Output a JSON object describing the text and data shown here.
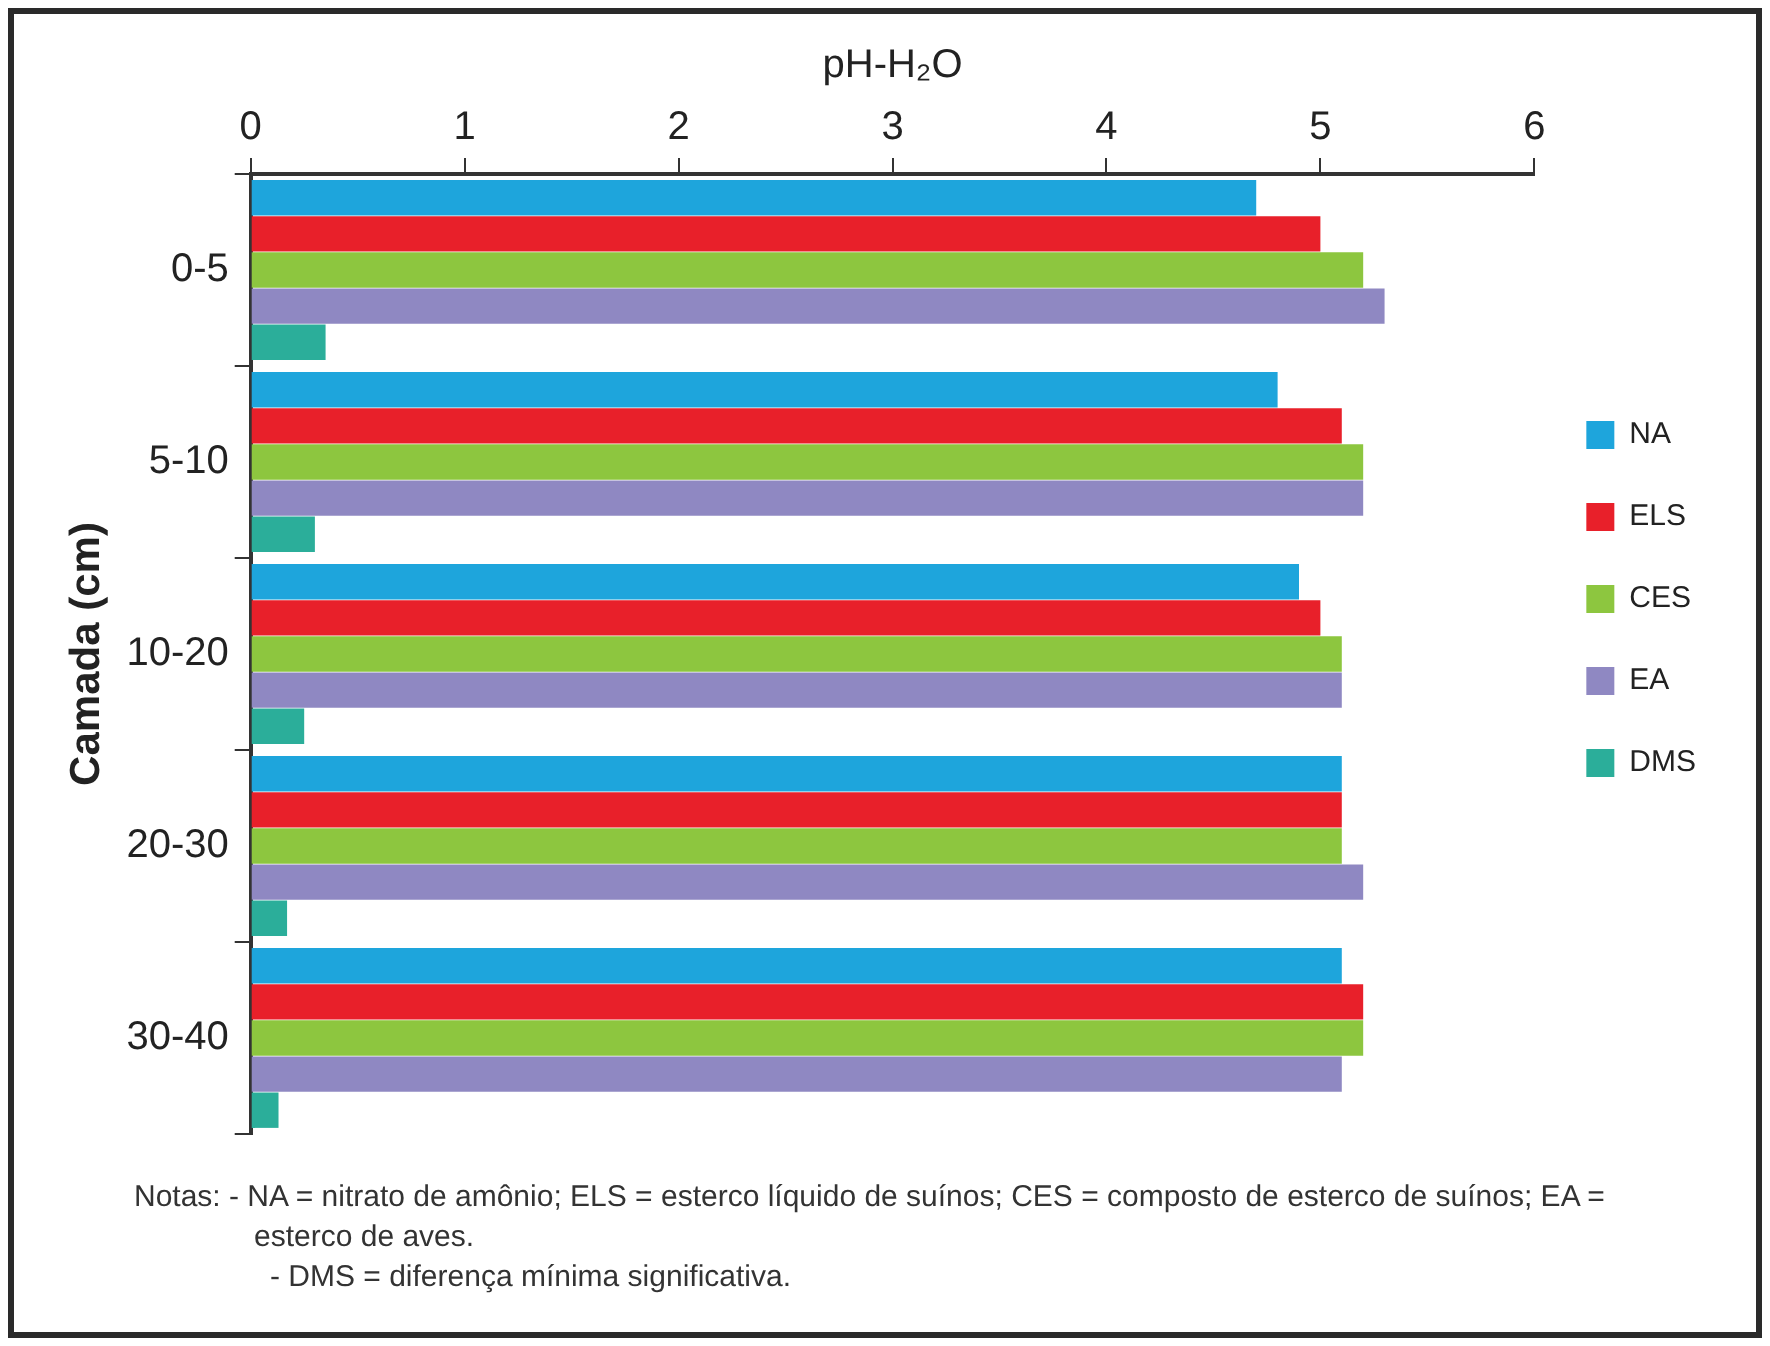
{
  "chart_data": {
    "type": "bar",
    "orientation": "horizontal",
    "xlabel": "pH-H₂O",
    "ylabel": "Camada (cm)",
    "categories": [
      "0-5",
      "5-10",
      "10-20",
      "20-30",
      "30-40"
    ],
    "series": [
      {
        "name": "NA",
        "color": "#1ea5dc",
        "values": [
          4.7,
          4.8,
          4.9,
          5.1,
          5.1
        ]
      },
      {
        "name": "ELS",
        "color": "#e8202a",
        "values": [
          5.0,
          5.1,
          5.0,
          5.1,
          5.2
        ]
      },
      {
        "name": "CES",
        "color": "#8dc63f",
        "values": [
          5.2,
          5.2,
          5.1,
          5.1,
          5.2
        ]
      },
      {
        "name": "EA",
        "color": "#8f88c2",
        "values": [
          5.3,
          5.2,
          5.1,
          5.2,
          5.1
        ]
      },
      {
        "name": "DMS",
        "color": "#2bae9a",
        "values": [
          0.35,
          0.3,
          0.25,
          0.17,
          0.13
        ]
      }
    ],
    "xlim": [
      0,
      6
    ],
    "xticks": [
      0,
      1,
      2,
      3,
      4,
      5,
      6
    ],
    "grid": false,
    "legend": "right",
    "annotations": [
      "Notas:  - NA = nitrato de amônio; ELS = esterco líquido de suínos; CES = composto de esterco de suínos; EA = esterco de aves.",
      "- DMS = diferença mínima significativa."
    ]
  }
}
